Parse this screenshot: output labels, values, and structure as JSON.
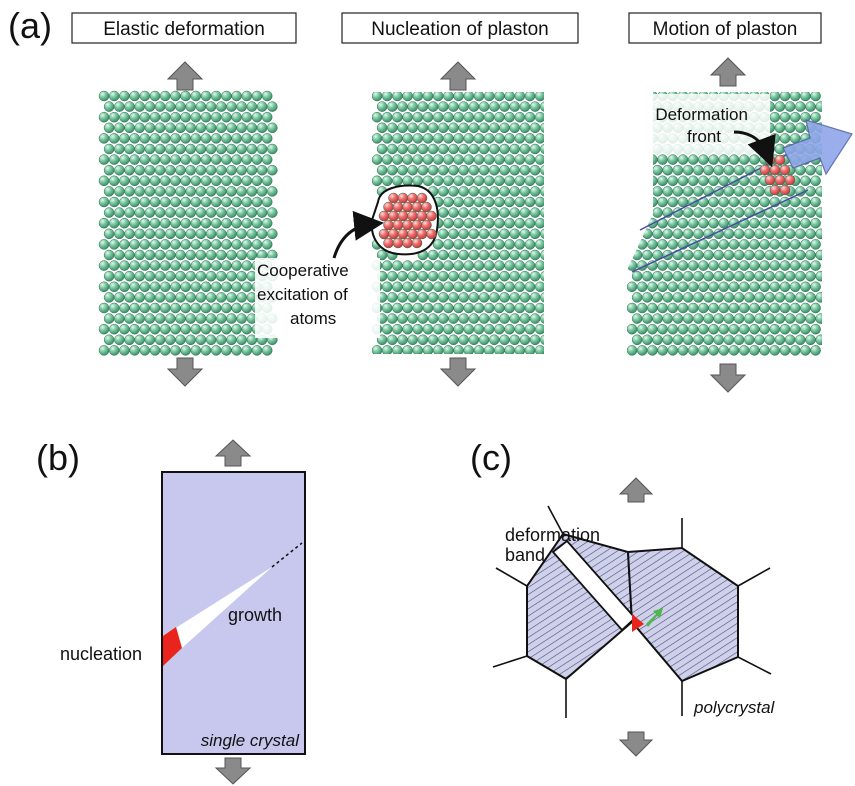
{
  "panels": {
    "a": {
      "letter": "(a)",
      "titles": [
        "Elastic deformation",
        "Nucleation of plaston",
        "Motion of plaston"
      ],
      "annotations": {
        "cooperative": [
          "Cooperative",
          "excitation of",
          "atoms"
        ],
        "front": [
          "Deformation",
          "front"
        ]
      }
    },
    "b": {
      "letter": "(b)",
      "labels": {
        "nucleation": "nucleation",
        "growth": "growth",
        "crystal": "single crystal"
      }
    },
    "c": {
      "letter": "(c)",
      "labels": {
        "band": [
          "deformation",
          "band"
        ],
        "crystal": "polycrystal"
      }
    }
  },
  "colors": {
    "atom": "#6fbf98",
    "atom_red": "#f26a6a",
    "arrow_gray": "#8a8a8a",
    "crystal_fill": "#c6c6ec",
    "hatch": "#4d4d7a",
    "red": "#e8241c",
    "blue_arrow": "#8ea6e8",
    "green_arrow": "#4db84d"
  },
  "icons": {
    "load_arrow": "gray-double-arrow-icon",
    "curved_pointer": "curved-black-arrow-icon",
    "motion_arrow": "blue-big-arrow-icon"
  }
}
